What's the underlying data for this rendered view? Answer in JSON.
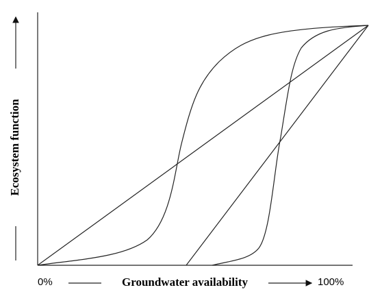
{
  "axes": {
    "y_label": "Ecosystem function",
    "x_label": "Groundwater availability",
    "x_min_label": "0%",
    "x_max_label": "100%"
  }
}
